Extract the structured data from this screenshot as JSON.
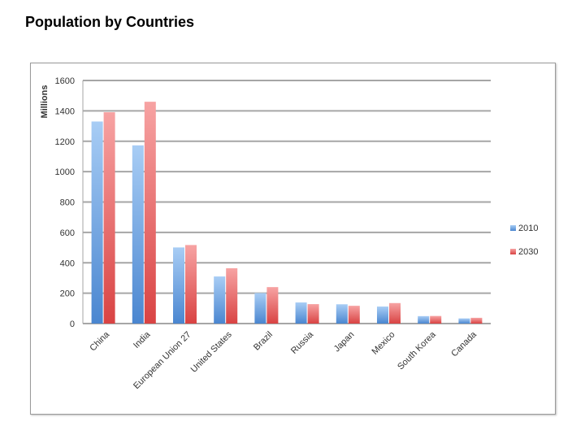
{
  "page": {
    "title": "Population by Countries"
  },
  "chart_data": {
    "type": "bar",
    "title": "",
    "xlabel": "",
    "ylabel": "Millions",
    "ylim": [
      0,
      1600
    ],
    "yticks": [
      0,
      200,
      400,
      600,
      800,
      1000,
      1200,
      1400,
      1600
    ],
    "grid": true,
    "legend_position": "right",
    "categories": [
      "China",
      "India",
      "European Union 27",
      "United States",
      "Brazil",
      "Russia",
      "Japan",
      "Mexico",
      "South Korea",
      "Canada"
    ],
    "series": [
      {
        "name": "2010",
        "color": "#5b9bd5",
        "values": [
          1330,
          1173,
          501,
          310,
          201,
          139,
          127,
          112,
          49,
          34
        ]
      },
      {
        "name": "2030",
        "color": "#e05a5a",
        "values": [
          1391,
          1460,
          517,
          364,
          240,
          128,
          117,
          135,
          50,
          38
        ]
      }
    ]
  }
}
